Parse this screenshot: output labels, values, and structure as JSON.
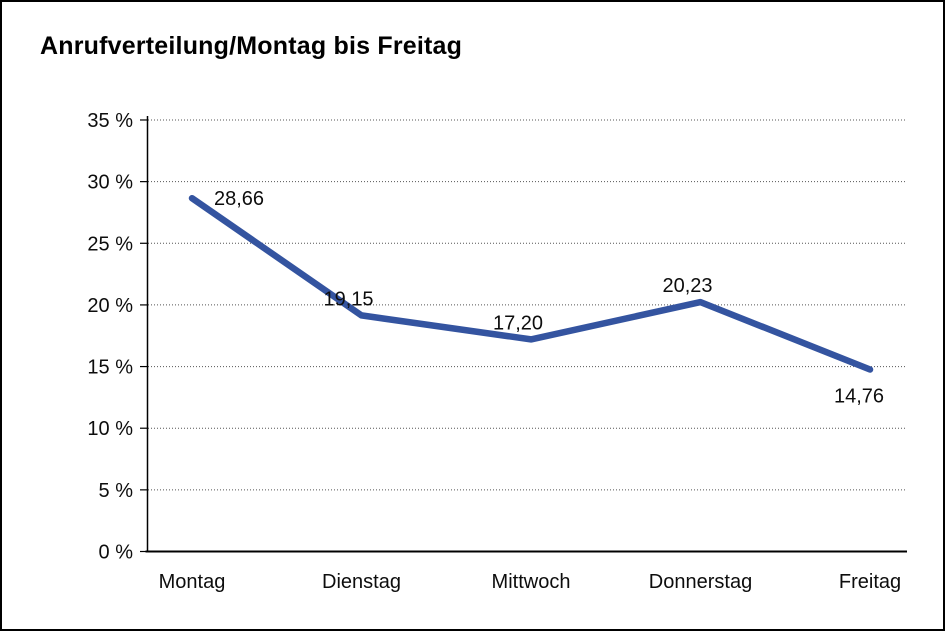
{
  "window": {
    "background": "#ffffff",
    "border_color": "#000000"
  },
  "chart_data": {
    "type": "line",
    "title": "Anrufverteilung/Montag bis Freitag",
    "categories": [
      "Montag",
      "Dienstag",
      "Mittwoch",
      "Donnerstag",
      "Freitag"
    ],
    "series": [
      {
        "name": "Anrufverteilung",
        "values": [
          28.66,
          19.15,
          17.2,
          20.23,
          14.76
        ],
        "point_labels": [
          "28,66",
          "19,15",
          "17,20",
          "20,23",
          "14,76"
        ],
        "color": "#3454A0"
      }
    ],
    "xlabel": "",
    "ylabel": "",
    "ylim": [
      0,
      35
    ],
    "yticks": {
      "values": [
        0,
        5,
        10,
        15,
        20,
        25,
        30,
        35
      ],
      "labels": [
        "0 %",
        "5 %",
        "10 %",
        "15 %",
        "20 %",
        "25 %",
        "30 %",
        "35 %"
      ]
    },
    "grid": {
      "horizontal": true,
      "vertical": false,
      "style": "dotted"
    },
    "legend_position": "none",
    "label_positions": [
      "above-right",
      "above",
      "above",
      "above",
      "below"
    ],
    "axis_color": "#000000",
    "grid_color": "#555555",
    "label_color": "#0d0d0d"
  }
}
